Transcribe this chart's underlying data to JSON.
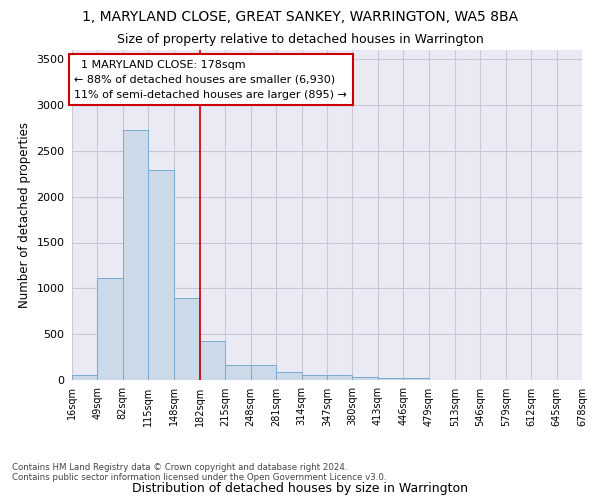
{
  "title": "1, MARYLAND CLOSE, GREAT SANKEY, WARRINGTON, WA5 8BA",
  "subtitle": "Size of property relative to detached houses in Warrington",
  "xlabel": "Distribution of detached houses by size in Warrington",
  "ylabel": "Number of detached properties",
  "bar_color": "#ccd9e8",
  "bar_edge_color": "#7aaad0",
  "grid_color": "#c8c8d8",
  "bg_color": "#eaeaf4",
  "vline_x": 182,
  "vline_color": "#cc0000",
  "annotation_box_color": "#cc0000",
  "annotation_text": "  1 MARYLAND CLOSE: 178sqm  \n← 88% of detached houses are smaller (6,930)\n11% of semi-detached houses are larger (895) →",
  "footer": "Contains HM Land Registry data © Crown copyright and database right 2024.\nContains public sector information licensed under the Open Government Licence v3.0.",
  "bin_edges": [
    16,
    49,
    82,
    115,
    148,
    182,
    215,
    248,
    281,
    314,
    347,
    380,
    413,
    446,
    479,
    513,
    546,
    579,
    612,
    645,
    678
  ],
  "bar_heights": [
    55,
    1110,
    2730,
    2290,
    890,
    430,
    165,
    165,
    90,
    60,
    55,
    35,
    25,
    20,
    0,
    0,
    0,
    0,
    0,
    0
  ],
  "ylim": [
    0,
    3600
  ],
  "yticks": [
    0,
    500,
    1000,
    1500,
    2000,
    2500,
    3000,
    3500
  ],
  "figsize": [
    6.0,
    5.0
  ],
  "dpi": 100
}
